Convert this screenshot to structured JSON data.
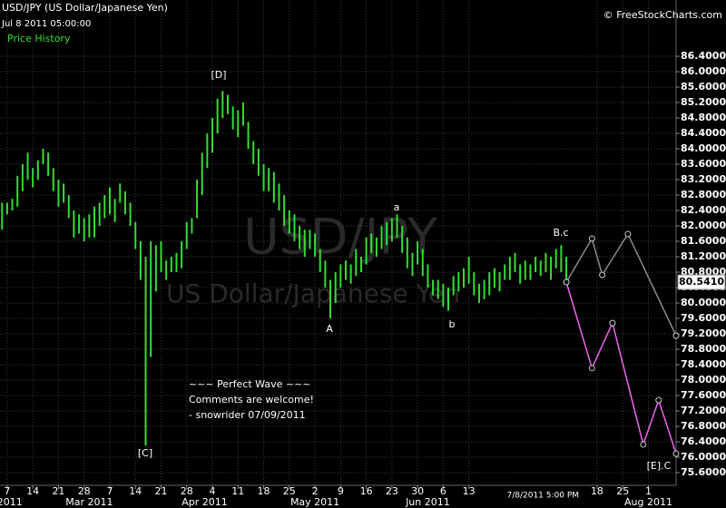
{
  "chart_data": {
    "type": "hilo",
    "title": "USD/JPY (US Dollar/Japanese Yen)",
    "subtitle": "Jul 8 2011 05:00:00",
    "watermark": "USD/JPY",
    "watermark_subtitle": "US Dollar/Japanese Yen",
    "credit": "© FreeStockCharts.com",
    "grid": true,
    "xlim": [
      -1.4,
      130.4
    ],
    "ylim": [
      75.27,
      87.86
    ],
    "yticks": [
      {
        "value": 75.6,
        "label": "75.6000"
      },
      {
        "value": 76,
        "label": "76.0000"
      },
      {
        "value": 76.4,
        "label": "76.4000"
      },
      {
        "value": 76.8,
        "label": "76.8000"
      },
      {
        "value": 77.2,
        "label": "77.2000"
      },
      {
        "value": 77.6,
        "label": "77.6000"
      },
      {
        "value": 78,
        "label": "78.0000"
      },
      {
        "value": 78.4,
        "label": "78.4000"
      },
      {
        "value": 78.8,
        "label": "78.8000"
      },
      {
        "value": 79.2,
        "label": "79.2000"
      },
      {
        "value": 79.6,
        "label": "79.6000"
      },
      {
        "value": 80,
        "label": "80.0000"
      },
      {
        "value": 80.4,
        "label": "80.4000"
      },
      {
        "value": 80.8,
        "label": "80.8000"
      },
      {
        "value": 81.2,
        "label": "81.2000"
      },
      {
        "value": 81.6,
        "label": "81.6000"
      },
      {
        "value": 82,
        "label": "82.0000"
      },
      {
        "value": 82.4,
        "label": "82.4000"
      },
      {
        "value": 82.8,
        "label": "82.8000"
      },
      {
        "value": 83.2,
        "label": "83.2000"
      },
      {
        "value": 83.6,
        "label": "83.6000"
      },
      {
        "value": 84,
        "label": "84.0000"
      },
      {
        "value": 84.4,
        "label": "84.4000"
      },
      {
        "value": 84.8,
        "label": "84.8000"
      },
      {
        "value": 85.2,
        "label": "85.2000"
      },
      {
        "value": 85.6,
        "label": "85.6000"
      },
      {
        "value": 86,
        "label": "86.0000"
      },
      {
        "value": 86.4,
        "label": "86.4000"
      }
    ],
    "xticks": [
      {
        "value": 0,
        "label": "7"
      },
      {
        "value": 5,
        "label": "14"
      },
      {
        "value": 10,
        "label": "21"
      },
      {
        "value": 15,
        "label": "28"
      },
      {
        "value": 20,
        "label": "7"
      },
      {
        "value": 25,
        "label": "14"
      },
      {
        "value": 30,
        "label": "21"
      },
      {
        "value": 35,
        "label": "28"
      },
      {
        "value": 40,
        "label": "4"
      },
      {
        "value": 45,
        "label": "11"
      },
      {
        "value": 50,
        "label": "18"
      },
      {
        "value": 55,
        "label": "25"
      },
      {
        "value": 60,
        "label": "2"
      },
      {
        "value": 65,
        "label": "9"
      },
      {
        "value": 70,
        "label": "16"
      },
      {
        "value": 75,
        "label": "23"
      },
      {
        "value": 80,
        "label": "30"
      },
      {
        "value": 85,
        "label": "6"
      },
      {
        "value": 90,
        "label": "13"
      },
      {
        "value": 115,
        "label": "18"
      },
      {
        "value": 120,
        "label": "25"
      },
      {
        "value": 125,
        "label": "1"
      }
    ],
    "month_ticks": [
      {
        "value": 0.5,
        "label": "2011"
      },
      {
        "value": 16,
        "label": "Mar 2011"
      },
      {
        "value": 38.5,
        "label": "Apr 2011"
      },
      {
        "value": 60,
        "label": "May 2011"
      },
      {
        "value": 82,
        "label": "Jun 2011"
      },
      {
        "value": 125,
        "label": "Aug 2011"
      }
    ],
    "cursor_label": {
      "value": 109,
      "label": "7/8/2011 5:00 PM"
    },
    "last_price": {
      "value": 80.541,
      "label": "80.5410"
    },
    "series": [
      {
        "type": "hilo",
        "name": "Price History",
        "color": "#33dd33",
        "x": [
          -1,
          0,
          1,
          2,
          3,
          4,
          5,
          6,
          7,
          8,
          9,
          10,
          11,
          12,
          13,
          14,
          15,
          16,
          17,
          18,
          19,
          20,
          21,
          22,
          23,
          24,
          25,
          26,
          27,
          28,
          29,
          30,
          31,
          32,
          33,
          34,
          35,
          36,
          37,
          38,
          39,
          40,
          41,
          42,
          43,
          44,
          45,
          46,
          47,
          48,
          49,
          50,
          51,
          52,
          53,
          54,
          55,
          56,
          57,
          58,
          59,
          60,
          61,
          62,
          63,
          64,
          65,
          66,
          67,
          68,
          69,
          70,
          71,
          72,
          73,
          74,
          75,
          76,
          77,
          78,
          79,
          80,
          81,
          82,
          83,
          84,
          85,
          86,
          87,
          88,
          89,
          90,
          91,
          92,
          93,
          94,
          95,
          96,
          97,
          98,
          99,
          100,
          101,
          102,
          103,
          104,
          105,
          106,
          107,
          108,
          109
        ],
        "high": [
          82.6,
          82.6,
          82.7,
          83.3,
          83.6,
          83.9,
          83.5,
          83.7,
          84.0,
          83.9,
          83.5,
          83.2,
          83.1,
          82.8,
          82.4,
          82.3,
          82.2,
          82.3,
          82.5,
          82.6,
          82.8,
          83.0,
          82.7,
          83.1,
          82.9,
          82.6,
          82.1,
          81.6,
          81.2,
          81.6,
          81.5,
          81.6,
          81.1,
          81.2,
          81.3,
          81.6,
          82.1,
          82.2,
          83.2,
          83.9,
          84.4,
          84.8,
          85.3,
          85.5,
          85.4,
          85.1,
          85.0,
          85.2,
          84.7,
          84.2,
          84.0,
          83.6,
          83.5,
          83.4,
          83.1,
          82.8,
          82.4,
          82.3,
          82.0,
          81.9,
          81.9,
          81.8,
          81.4,
          81.1,
          80.6,
          80.8,
          81.0,
          81.1,
          81.0,
          81.4,
          81.2,
          81.7,
          81.8,
          81.7,
          82.0,
          82.1,
          82.2,
          82.3,
          82.0,
          81.7,
          81.3,
          81.6,
          81.4,
          81.0,
          80.6,
          80.6,
          80.5,
          80.4,
          80.7,
          80.8,
          80.9,
          81.2,
          80.8,
          80.5,
          80.6,
          80.8,
          80.9,
          80.8,
          81.0,
          81.2,
          81.3,
          81.0,
          81.1,
          81.0,
          81.2,
          81.1,
          81.3,
          81.2,
          81.4,
          81.5,
          81.2
        ],
        "low": [
          81.9,
          82.3,
          82.4,
          82.5,
          82.9,
          83.2,
          83.0,
          83.2,
          83.6,
          83.3,
          82.9,
          82.5,
          82.6,
          82.2,
          81.7,
          81.8,
          81.6,
          81.7,
          81.7,
          82.0,
          82.2,
          82.3,
          82.1,
          82.6,
          82.3,
          82.0,
          81.4,
          80.6,
          76.3,
          78.6,
          80.3,
          80.8,
          80.6,
          80.8,
          80.8,
          80.9,
          81.4,
          81.8,
          82.2,
          82.8,
          83.5,
          83.9,
          84.4,
          84.8,
          84.9,
          84.5,
          84.3,
          84.6,
          84.0,
          83.6,
          83.3,
          82.9,
          82.9,
          82.6,
          82.4,
          82.0,
          81.8,
          81.6,
          81.4,
          81.2,
          81.4,
          81.2,
          80.8,
          80.4,
          79.6,
          80.0,
          80.4,
          80.6,
          80.5,
          80.7,
          80.8,
          81.0,
          81.3,
          81.2,
          81.4,
          81.5,
          81.6,
          81.7,
          81.3,
          80.9,
          80.7,
          81.0,
          80.7,
          80.4,
          80.2,
          80.1,
          79.9,
          79.8,
          80.2,
          80.3,
          80.4,
          80.5,
          80.2,
          80.0,
          80.1,
          80.2,
          80.4,
          80.3,
          80.6,
          80.6,
          80.8,
          80.5,
          80.6,
          80.6,
          80.8,
          80.7,
          80.8,
          80.6,
          80.9,
          80.8,
          80.5
        ]
      },
      {
        "type": "line",
        "color": "#8a8a8a",
        "x": [
          109,
          114,
          116,
          121,
          130.4
        ],
        "values": [
          80.54,
          81.67,
          80.73,
          81.79,
          79.15
        ]
      },
      {
        "type": "line",
        "color": "#ee66ee",
        "x": [
          109,
          114,
          118,
          124,
          127,
          130.4
        ],
        "values": [
          80.54,
          78.31,
          79.48,
          76.33,
          77.48,
          76.09
        ]
      }
    ],
    "annotations": [
      "[D]",
      "a",
      "B.c",
      "A",
      "b",
      "[C]",
      "[E].C",
      "~~~ Perfect Wave ~~~",
      "Comments are welcome!",
      "- snowrider  07/09/2011"
    ]
  }
}
